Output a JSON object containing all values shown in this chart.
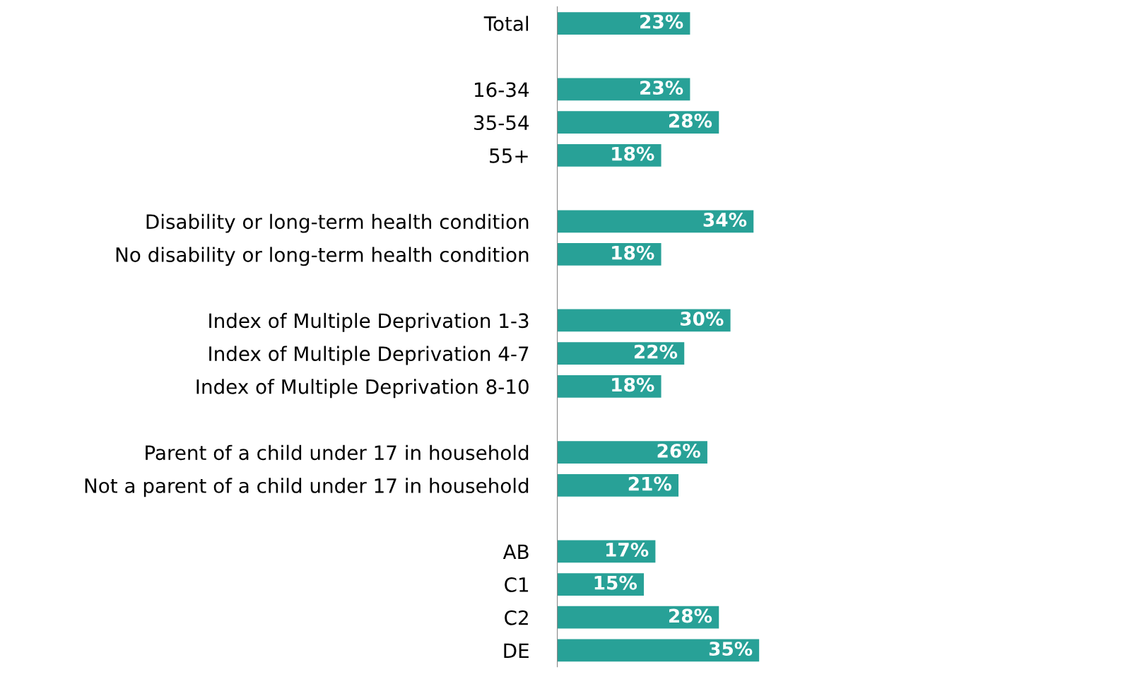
{
  "chart_data": {
    "type": "bar",
    "orientation": "horizontal",
    "color": "#28a197",
    "categories": [
      "Total",
      null,
      "16-34",
      "35-54",
      "55+",
      null,
      "Disability or long-term health condition",
      "No disability or long-term health condition",
      null,
      "Index of Multiple Deprivation 1-3",
      "Index of Multiple Deprivation 4-7",
      "Index of Multiple Deprivation 8-10",
      null,
      "Parent of a child under 17 in household",
      "Not a parent of a child under 17 in household",
      null,
      "AB",
      "C1",
      "C2",
      "DE"
    ],
    "values": [
      23,
      null,
      23,
      28,
      18,
      null,
      34,
      18,
      null,
      30,
      22,
      18,
      null,
      26,
      21,
      null,
      17,
      15,
      28,
      35
    ],
    "value_labels": [
      "23%",
      null,
      "23%",
      "28%",
      "18%",
      null,
      "34%",
      "18%",
      null,
      "30%",
      "22%",
      "18%",
      null,
      "26%",
      "21%",
      null,
      "17%",
      "15%",
      "28%",
      "35%"
    ],
    "tick_labels": "y",
    "grid": false,
    "legend": false
  }
}
